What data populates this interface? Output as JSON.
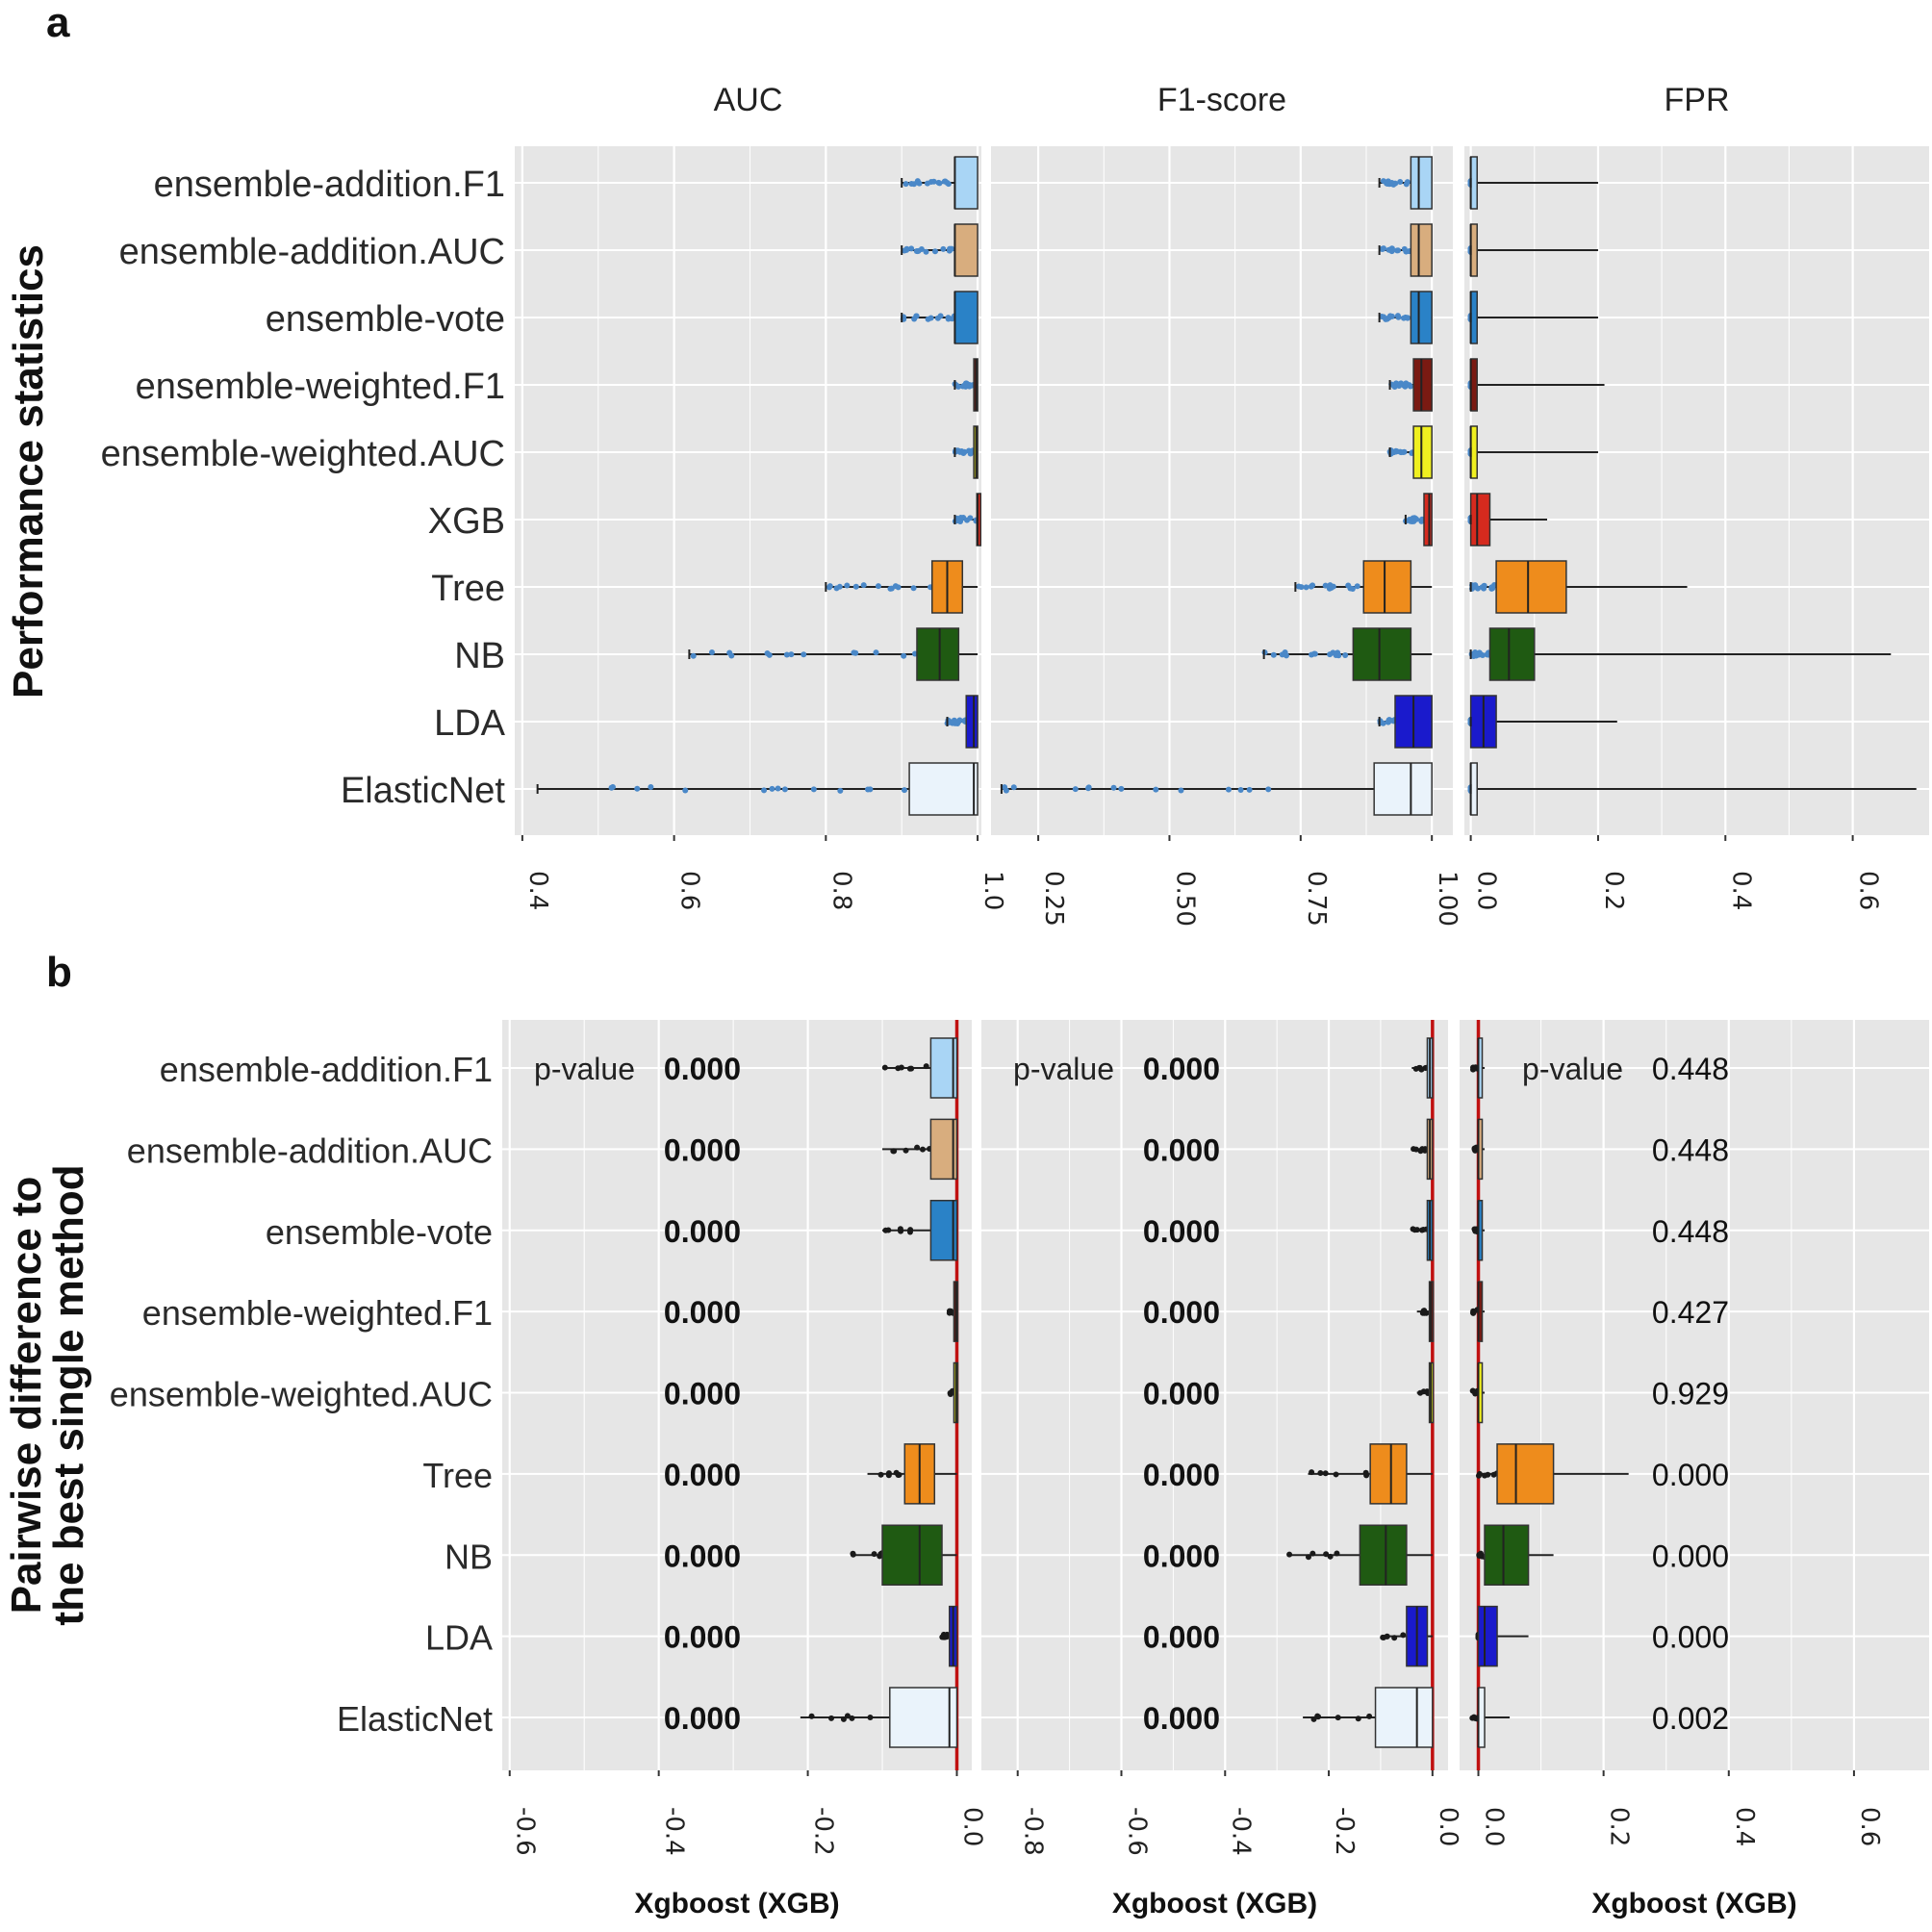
{
  "chart_data": [
    {
      "panel": "a",
      "type": "box",
      "ylabel": "Performance statistics",
      "methods": [
        "ensemble-addition.F1",
        "ensemble-addition.AUC",
        "ensemble-vote",
        "ensemble-weighted.F1",
        "ensemble-weighted.AUC",
        "XGB",
        "Tree",
        "NB",
        "LDA",
        "ElasticNet"
      ],
      "colors": [
        "#a9d5f5",
        "#d8ad7e",
        "#2a82c7",
        "#7a1a12",
        "#f0f020",
        "#d62a1e",
        "#ee8c1c",
        "#1f5a12",
        "#1a1acc",
        "#eaf3fb"
      ],
      "facets": [
        {
          "title": "AUC",
          "xlim": [
            0.39,
            1.005
          ],
          "tick_values": [
            0.4,
            0.6,
            0.8,
            1.0
          ],
          "tick_labels": [
            "0.4",
            "0.6",
            "0.8",
            "1.0"
          ],
          "boxes": [
            {
              "q1": 0.97,
              "med": 0.97,
              "q3": 1.0,
              "lo": 0.9,
              "hi": 1.0
            },
            {
              "q1": 0.97,
              "med": 0.97,
              "q3": 1.0,
              "lo": 0.9,
              "hi": 1.0
            },
            {
              "q1": 0.97,
              "med": 0.97,
              "q3": 1.0,
              "lo": 0.9,
              "hi": 1.0
            },
            {
              "q1": 0.995,
              "med": 0.998,
              "q3": 1.0,
              "lo": 0.97,
              "hi": 1.0
            },
            {
              "q1": 0.995,
              "med": 0.998,
              "q3": 1.0,
              "lo": 0.97,
              "hi": 1.0
            },
            {
              "q1": 0.999,
              "med": 1.0,
              "q3": 1.0,
              "lo": 0.97,
              "hi": 1.0
            },
            {
              "q1": 0.94,
              "med": 0.96,
              "q3": 0.98,
              "lo": 0.8,
              "hi": 1.0
            },
            {
              "q1": 0.92,
              "med": 0.95,
              "q3": 0.975,
              "lo": 0.62,
              "hi": 1.0
            },
            {
              "q1": 0.985,
              "med": 0.995,
              "q3": 1.0,
              "lo": 0.96,
              "hi": 1.0
            },
            {
              "q1": 0.91,
              "med": 0.995,
              "q3": 1.0,
              "lo": 0.42,
              "hi": 1.0
            }
          ]
        },
        {
          "title": "F1-score",
          "xlim": [
            0.16,
            1.04
          ],
          "tick_values": [
            0.25,
            0.5,
            0.75,
            1.0
          ],
          "tick_labels": [
            "0.25",
            "0.50",
            "0.75",
            "1.00"
          ],
          "boxes": [
            {
              "q1": 0.96,
              "med": 0.975,
              "q3": 1.0,
              "lo": 0.9,
              "hi": 1.0
            },
            {
              "q1": 0.96,
              "med": 0.975,
              "q3": 1.0,
              "lo": 0.9,
              "hi": 1.0
            },
            {
              "q1": 0.96,
              "med": 0.975,
              "q3": 1.0,
              "lo": 0.9,
              "hi": 1.0
            },
            {
              "q1": 0.965,
              "med": 0.98,
              "q3": 1.0,
              "lo": 0.92,
              "hi": 1.0
            },
            {
              "q1": 0.965,
              "med": 0.98,
              "q3": 1.0,
              "lo": 0.92,
              "hi": 1.0
            },
            {
              "q1": 0.985,
              "med": 0.995,
              "q3": 1.0,
              "lo": 0.95,
              "hi": 1.0
            },
            {
              "q1": 0.87,
              "med": 0.91,
              "q3": 0.96,
              "lo": 0.74,
              "hi": 1.0
            },
            {
              "q1": 0.85,
              "med": 0.9,
              "q3": 0.96,
              "lo": 0.68,
              "hi": 1.0
            },
            {
              "q1": 0.93,
              "med": 0.965,
              "q3": 1.0,
              "lo": 0.9,
              "hi": 1.0
            },
            {
              "q1": 0.89,
              "med": 0.96,
              "q3": 1.0,
              "lo": 0.18,
              "hi": 1.0
            }
          ]
        },
        {
          "title": "FPR",
          "xlim": [
            -0.01,
            0.72
          ],
          "tick_values": [
            0.0,
            0.2,
            0.4,
            0.6
          ],
          "tick_labels": [
            "0.0",
            "0.2",
            "0.4",
            "0.6"
          ],
          "boxes": [
            {
              "q1": 0.0,
              "med": 0.0,
              "q3": 0.01,
              "lo": 0.0,
              "hi": 0.2
            },
            {
              "q1": 0.0,
              "med": 0.0,
              "q3": 0.01,
              "lo": 0.0,
              "hi": 0.2
            },
            {
              "q1": 0.0,
              "med": 0.0,
              "q3": 0.01,
              "lo": 0.0,
              "hi": 0.2
            },
            {
              "q1": 0.0,
              "med": 0.0,
              "q3": 0.01,
              "lo": 0.0,
              "hi": 0.21
            },
            {
              "q1": 0.0,
              "med": 0.0,
              "q3": 0.01,
              "lo": 0.0,
              "hi": 0.2
            },
            {
              "q1": 0.0,
              "med": 0.01,
              "q3": 0.03,
              "lo": 0.0,
              "hi": 0.12
            },
            {
              "q1": 0.04,
              "med": 0.09,
              "q3": 0.15,
              "lo": 0.0,
              "hi": 0.34
            },
            {
              "q1": 0.03,
              "med": 0.06,
              "q3": 0.1,
              "lo": 0.0,
              "hi": 0.66
            },
            {
              "q1": 0.0,
              "med": 0.02,
              "q3": 0.04,
              "lo": 0.0,
              "hi": 0.23
            },
            {
              "q1": 0.0,
              "med": 0.0,
              "q3": 0.01,
              "lo": 0.0,
              "hi": 0.7
            }
          ]
        }
      ]
    },
    {
      "panel": "b",
      "type": "box",
      "ylabel_lines": [
        "Pairwise difference to",
        "the best single method"
      ],
      "xlabel": "Xgboost (XGB)",
      "pvalue_label": "p-value",
      "methods": [
        "ensemble-addition.F1",
        "ensemble-addition.AUC",
        "ensemble-vote",
        "ensemble-weighted.F1",
        "ensemble-weighted.AUC",
        "Tree",
        "NB",
        "LDA",
        "ElasticNet"
      ],
      "colors": [
        "#a9d5f5",
        "#d8ad7e",
        "#2a82c7",
        "#7a1a12",
        "#f0f020",
        "#ee8c1c",
        "#1f5a12",
        "#1a1acc",
        "#eaf3fb"
      ],
      "facets": [
        {
          "xlim": [
            -0.61,
            0.02
          ],
          "tick_values": [
            -0.6,
            -0.4,
            -0.2,
            0.0
          ],
          "tick_labels": [
            "-0.6",
            "-0.4",
            "-0.2",
            "0.0"
          ],
          "pvalues": [
            "0.000",
            "0.000",
            "0.000",
            "0.000",
            "0.000",
            "0.000",
            "0.000",
            "0.000",
            "0.000"
          ],
          "boxes": [
            {
              "q1": -0.035,
              "med": -0.005,
              "q3": 0.0,
              "lo": -0.1,
              "hi": 0.0
            },
            {
              "q1": -0.035,
              "med": -0.005,
              "q3": 0.0,
              "lo": -0.1,
              "hi": 0.0
            },
            {
              "q1": -0.035,
              "med": -0.005,
              "q3": 0.0,
              "lo": -0.1,
              "hi": 0.0
            },
            {
              "q1": -0.004,
              "med": -0.001,
              "q3": 0.0,
              "lo": -0.01,
              "hi": 0.0
            },
            {
              "q1": -0.004,
              "med": -0.001,
              "q3": 0.0,
              "lo": -0.01,
              "hi": 0.0
            },
            {
              "q1": -0.07,
              "med": -0.05,
              "q3": -0.03,
              "lo": -0.12,
              "hi": 0.0
            },
            {
              "q1": -0.1,
              "med": -0.05,
              "q3": -0.02,
              "lo": -0.14,
              "hi": 0.0
            },
            {
              "q1": -0.01,
              "med": -0.005,
              "q3": 0.0,
              "lo": -0.02,
              "hi": 0.0
            },
            {
              "q1": -0.09,
              "med": -0.01,
              "q3": 0.0,
              "lo": -0.21,
              "hi": 0.0
            }
          ]
        },
        {
          "xlim": [
            -0.87,
            0.03
          ],
          "tick_values": [
            -0.8,
            -0.6,
            -0.4,
            -0.2,
            0.0
          ],
          "tick_labels": [
            "-0.8",
            "-0.6",
            "-0.4",
            "-0.2",
            "0.0"
          ],
          "pvalues": [
            "0.000",
            "0.000",
            "0.000",
            "0.000",
            "0.000",
            "0.000",
            "0.000",
            "0.000",
            "0.000"
          ],
          "boxes": [
            {
              "q1": -0.01,
              "med": -0.005,
              "q3": 0.0,
              "lo": -0.04,
              "hi": 0.0
            },
            {
              "q1": -0.01,
              "med": -0.005,
              "q3": 0.0,
              "lo": -0.04,
              "hi": 0.0
            },
            {
              "q1": -0.01,
              "med": -0.005,
              "q3": 0.0,
              "lo": -0.04,
              "hi": 0.0
            },
            {
              "q1": -0.006,
              "med": -0.003,
              "q3": 0.0,
              "lo": -0.03,
              "hi": 0.0
            },
            {
              "q1": -0.006,
              "med": -0.003,
              "q3": 0.0,
              "lo": -0.03,
              "hi": 0.0
            },
            {
              "q1": -0.12,
              "med": -0.08,
              "q3": -0.05,
              "lo": -0.24,
              "hi": 0.0
            },
            {
              "q1": -0.14,
              "med": -0.09,
              "q3": -0.05,
              "lo": -0.28,
              "hi": 0.0
            },
            {
              "q1": -0.05,
              "med": -0.03,
              "q3": -0.01,
              "lo": -0.1,
              "hi": 0.0
            },
            {
              "q1": -0.11,
              "med": -0.03,
              "q3": 0.0,
              "lo": -0.25,
              "hi": 0.0
            }
          ]
        },
        {
          "xlim": [
            -0.03,
            0.72
          ],
          "tick_values": [
            0.0,
            0.2,
            0.4,
            0.6
          ],
          "tick_labels": [
            "0.0",
            "0.2",
            "0.4",
            "0.6"
          ],
          "pvalues": [
            "0.448",
            "0.448",
            "0.448",
            "0.427",
            "0.929",
            "0.000",
            "0.000",
            "0.000",
            "0.002"
          ],
          "boxes": [
            {
              "q1": 0.0,
              "med": 0.0,
              "q3": 0.003,
              "lo": -0.01,
              "hi": 0.01
            },
            {
              "q1": 0.0,
              "med": 0.0,
              "q3": 0.003,
              "lo": -0.01,
              "hi": 0.01
            },
            {
              "q1": 0.0,
              "med": 0.0,
              "q3": 0.003,
              "lo": -0.01,
              "hi": 0.01
            },
            {
              "q1": 0.0,
              "med": 0.0,
              "q3": 0.003,
              "lo": -0.01,
              "hi": 0.01
            },
            {
              "q1": 0.0,
              "med": 0.0,
              "q3": 0.003,
              "lo": -0.01,
              "hi": 0.01
            },
            {
              "q1": 0.03,
              "med": 0.06,
              "q3": 0.12,
              "lo": 0.0,
              "hi": 0.24
            },
            {
              "q1": 0.01,
              "med": 0.04,
              "q3": 0.08,
              "lo": 0.0,
              "hi": 0.12
            },
            {
              "q1": 0.0,
              "med": 0.01,
              "q3": 0.03,
              "lo": 0.0,
              "hi": 0.08
            },
            {
              "q1": 0.0,
              "med": 0.0,
              "q3": 0.01,
              "lo": -0.01,
              "hi": 0.05
            }
          ]
        }
      ]
    }
  ],
  "panel_labels": {
    "a": "a",
    "b": "b"
  },
  "colors": {
    "panel_bg": "#e6e6e6",
    "grid": "#ffffff",
    "zero_line": "#c01010",
    "whisker": "#222222",
    "outlier": "#1a1a1a",
    "violin_fill": "#4a88c8"
  }
}
